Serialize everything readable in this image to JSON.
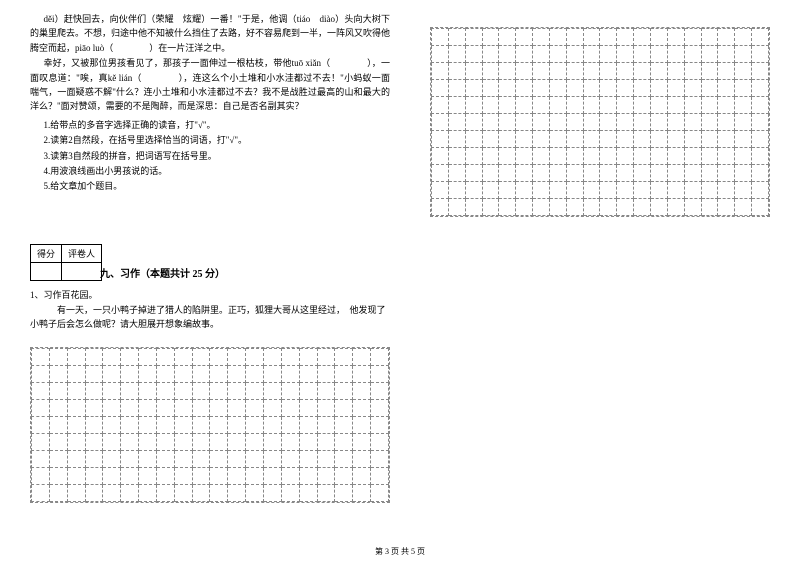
{
  "passage": {
    "p1": "děi）赶快回去，向伙伴们（荣耀　炫耀）一番！\"于是，他调（tiáo　diào）头向大树下的巢里爬去。不想，归途中他不知被什么挡住了去路，好不容易爬到一半，一阵风又吹得他腾空而起，piāo luò（　　　　）在一片汪洋之中。",
    "p2": "幸好，又被那位男孩看见了，那孩子一面伸过一根枯枝，带他tuō xiǎn（　　　　），一面叹息道：\"唉，真kě lián（　　　　），连这么个小土堆和小水洼都过不去！\"小蚂蚁一面喘气，一面疑惑不解\"什么？连小土堆和小水洼都过不去？我不是战胜过最高的山和最大的洋么？\"面对赞颂，需要的不是陶醉，而是深思：自己是否名副其实？",
    "q1": "1.给带点的多音字选择正确的读音，打\"√\"。",
    "q2": "2.读第2自然段，在括号里选择恰当的词语，打\"√\"。",
    "q3": "3.读第3自然段的拼音，把词语写在括号里。",
    "q4": "4.用波浪线画出小男孩说的话。",
    "q5": "5.给文章加个题目。"
  },
  "scoreTable": {
    "col1": "得分",
    "col2": "评卷人"
  },
  "section": {
    "title": "九、习作（本题共计 25 分）"
  },
  "writing": {
    "line1": "1、习作百花园。",
    "line2": "有一天，一只小鸭子掉进了猎人的陷阱里。正巧，狐狸大哥从这里经过，　他发现了小鸭子后会怎么做呢？请大胆展开想象编故事。"
  },
  "grid": {
    "leftRows": 9,
    "leftCols": 20,
    "rightRows": 11,
    "rightCols": 20,
    "borderColor": "#888888"
  },
  "footer": "第 3 页 共 5 页"
}
